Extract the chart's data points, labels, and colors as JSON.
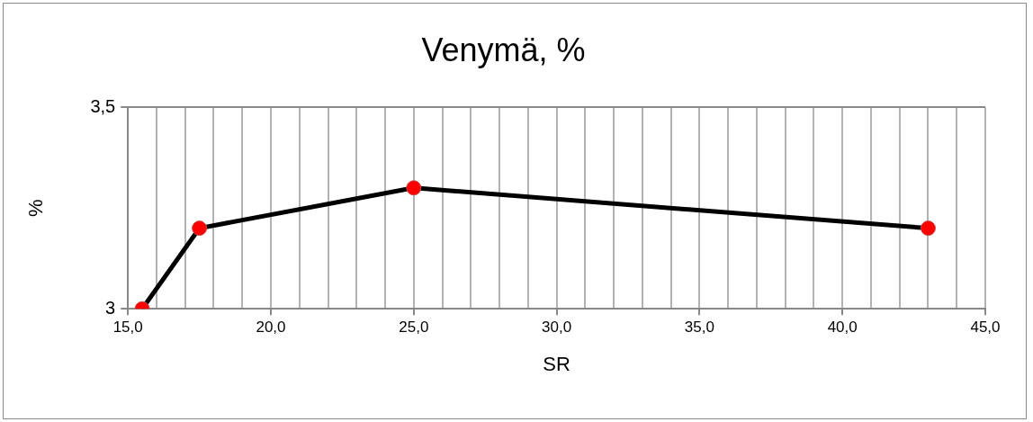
{
  "chart_data": {
    "type": "line",
    "title": "Venymä, %",
    "xlabel": "SR",
    "ylabel": "%",
    "x": [
      15.5,
      17.5,
      25.0,
      43.0
    ],
    "series": [
      {
        "color": "#000000",
        "colors": [
          "#ff0000",
          "#ff0000",
          "#ff0000",
          "#ff0000"
        ],
        "values": [
          3.0,
          3.2,
          3.3,
          3.2
        ]
      }
    ],
    "xlim": [
      15,
      45
    ],
    "ylim": [
      3,
      3.5
    ],
    "xticks": [
      {
        "value": 15,
        "label": "15,0"
      },
      {
        "value": 16,
        "label": null
      },
      {
        "value": 17,
        "label": null
      },
      {
        "value": 18,
        "label": null
      },
      {
        "value": 19,
        "label": null
      },
      {
        "value": 20,
        "label": "20,0"
      },
      {
        "value": 21,
        "label": null
      },
      {
        "value": 22,
        "label": null
      },
      {
        "value": 23,
        "label": null
      },
      {
        "value": 24,
        "label": null
      },
      {
        "value": 25,
        "label": "25,0"
      },
      {
        "value": 26,
        "label": null
      },
      {
        "value": 27,
        "label": null
      },
      {
        "value": 28,
        "label": null
      },
      {
        "value": 29,
        "label": null
      },
      {
        "value": 30,
        "label": "30,0"
      },
      {
        "value": 31,
        "label": null
      },
      {
        "value": 32,
        "label": null
      },
      {
        "value": 33,
        "label": null
      },
      {
        "value": 34,
        "label": null
      },
      {
        "value": 35,
        "label": "35,0"
      },
      {
        "value": 36,
        "label": null
      },
      {
        "value": 37,
        "label": null
      },
      {
        "value": 38,
        "label": null
      },
      {
        "value": 39,
        "label": null
      },
      {
        "value": 40,
        "label": "40,0"
      },
      {
        "value": 41,
        "label": null
      },
      {
        "value": 42,
        "label": null
      },
      {
        "value": 43,
        "label": null
      },
      {
        "value": 44,
        "label": null
      },
      {
        "value": 45,
        "label": "45,0"
      }
    ],
    "yticks": [
      3,
      {
        "value": 3.5,
        "label": "3,5"
      }
    ],
    "grid": true,
    "marker": "circle"
  }
}
